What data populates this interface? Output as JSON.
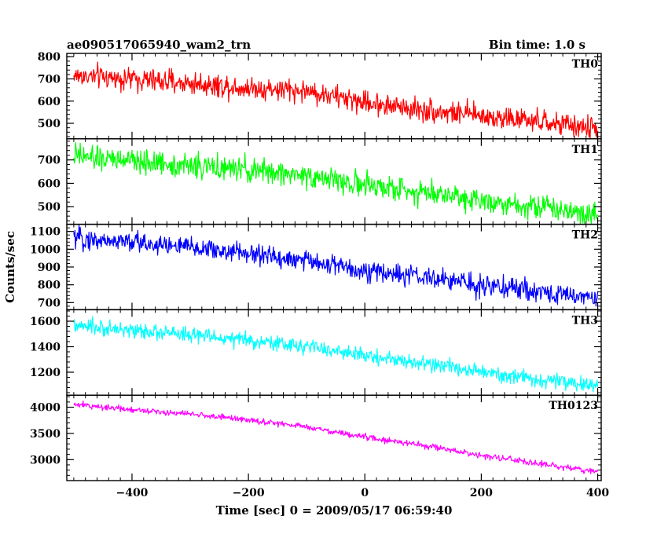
{
  "header": {
    "left_title": "ae090517065940_wam2_trn",
    "right_title": "Bin time: 1.0 s"
  },
  "chart_data": {
    "type": "line",
    "title": "ae090517065940_wam2_trn",
    "subtitle": "Bin time: 1.0 s",
    "xlabel": "Time [sec] 0 = 2009/05/17 06:59:40",
    "ylabel": "Counts/sec",
    "xlim": [
      -512,
      406
    ],
    "x_ticks": [
      -400,
      -200,
      0,
      200,
      400
    ],
    "x_range_data": [
      -500,
      400
    ],
    "bin_time_s": 1.0,
    "grid": false,
    "panels": [
      {
        "name": "TH0",
        "color": "#ff0000",
        "ylim": [
          430,
          815
        ],
        "y_ticks": [
          500,
          600,
          700,
          800
        ],
        "trend": [
          {
            "x": -500,
            "y": 715
          },
          {
            "x": -400,
            "y": 700
          },
          {
            "x": -300,
            "y": 680
          },
          {
            "x": -200,
            "y": 660
          },
          {
            "x": -100,
            "y": 645
          },
          {
            "x": 0,
            "y": 595
          },
          {
            "x": 100,
            "y": 560
          },
          {
            "x": 200,
            "y": 535
          },
          {
            "x": 300,
            "y": 505
          },
          {
            "x": 400,
            "y": 475
          }
        ],
        "scatter": 40
      },
      {
        "name": "TH1",
        "color": "#00ff00",
        "ylim": [
          425,
          790
        ],
        "y_ticks": [
          500,
          600,
          700
        ],
        "trend": [
          {
            "x": -500,
            "y": 715
          },
          {
            "x": -400,
            "y": 695
          },
          {
            "x": -300,
            "y": 675
          },
          {
            "x": -200,
            "y": 655
          },
          {
            "x": -100,
            "y": 635
          },
          {
            "x": 0,
            "y": 590
          },
          {
            "x": 100,
            "y": 565
          },
          {
            "x": 200,
            "y": 530
          },
          {
            "x": 300,
            "y": 500
          },
          {
            "x": 400,
            "y": 470
          }
        ],
        "scatter": 40
      },
      {
        "name": "TH2",
        "color": "#0000ff",
        "ylim": [
          660,
          1140
        ],
        "y_ticks": [
          700,
          800,
          900,
          1000,
          1100
        ],
        "trend": [
          {
            "x": -500,
            "y": 1060
          },
          {
            "x": -400,
            "y": 1040
          },
          {
            "x": -300,
            "y": 1010
          },
          {
            "x": -200,
            "y": 975
          },
          {
            "x": -100,
            "y": 935
          },
          {
            "x": 0,
            "y": 880
          },
          {
            "x": 100,
            "y": 840
          },
          {
            "x": 200,
            "y": 800
          },
          {
            "x": 300,
            "y": 760
          },
          {
            "x": 400,
            "y": 725
          }
        ],
        "scatter": 45
      },
      {
        "name": "TH3",
        "color": "#00ffff",
        "ylim": [
          1020,
          1690
        ],
        "y_ticks": [
          1200,
          1400,
          1600
        ],
        "trend": [
          {
            "x": -500,
            "y": 1560
          },
          {
            "x": -400,
            "y": 1530
          },
          {
            "x": -300,
            "y": 1490
          },
          {
            "x": -200,
            "y": 1450
          },
          {
            "x": -100,
            "y": 1400
          },
          {
            "x": 0,
            "y": 1330
          },
          {
            "x": 100,
            "y": 1270
          },
          {
            "x": 200,
            "y": 1200
          },
          {
            "x": 300,
            "y": 1140
          },
          {
            "x": 400,
            "y": 1090
          }
        ],
        "scatter": 45
      },
      {
        "name": "TH0123",
        "color": "#ff00ff",
        "ylim": [
          2600,
          4230
        ],
        "y_ticks": [
          3000,
          3500,
          4000
        ],
        "trend": [
          {
            "x": -500,
            "y": 4050
          },
          {
            "x": -400,
            "y": 3960
          },
          {
            "x": -300,
            "y": 3870
          },
          {
            "x": -200,
            "y": 3760
          },
          {
            "x": -100,
            "y": 3620
          },
          {
            "x": 0,
            "y": 3430
          },
          {
            "x": 100,
            "y": 3270
          },
          {
            "x": 200,
            "y": 3080
          },
          {
            "x": 300,
            "y": 2920
          },
          {
            "x": 400,
            "y": 2770
          }
        ],
        "scatter": 45
      }
    ]
  }
}
